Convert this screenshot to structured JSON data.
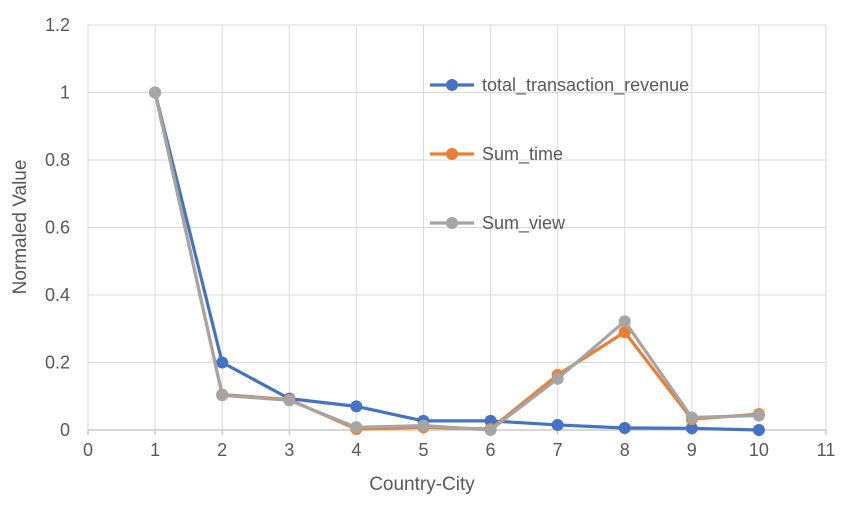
{
  "chart_data": {
    "type": "line",
    "title": "",
    "xlabel": "Country-City",
    "ylabel": "Normaled Value",
    "xlim": [
      0,
      11
    ],
    "ylim": [
      0,
      1.2
    ],
    "xticks": [
      "0",
      "1",
      "2",
      "3",
      "4",
      "5",
      "6",
      "7",
      "8",
      "9",
      "10",
      "11"
    ],
    "yticks": [
      "0",
      "0.2",
      "0.4",
      "0.6",
      "0.8",
      "1",
      "1.2"
    ],
    "grid": true,
    "legend_position": "inside-top-right",
    "x": [
      1,
      2,
      3,
      4,
      5,
      6,
      7,
      8,
      9,
      10
    ],
    "series": [
      {
        "name": "total_transaction_revenue",
        "color": "#4472C4",
        "values": [
          1.0,
          0.2,
          0.093,
          0.07,
          0.027,
          0.027,
          0.015,
          0.006,
          0.005,
          0.0
        ]
      },
      {
        "name": "Sum_time",
        "color": "#ED7D31",
        "values": [
          1.0,
          0.105,
          0.09,
          0.003,
          0.008,
          0.003,
          0.163,
          0.29,
          0.032,
          0.047
        ]
      },
      {
        "name": "Sum_view",
        "color": "#A5A5A5",
        "values": [
          1.0,
          0.103,
          0.088,
          0.008,
          0.013,
          0.0,
          0.152,
          0.322,
          0.037,
          0.043
        ]
      }
    ]
  }
}
